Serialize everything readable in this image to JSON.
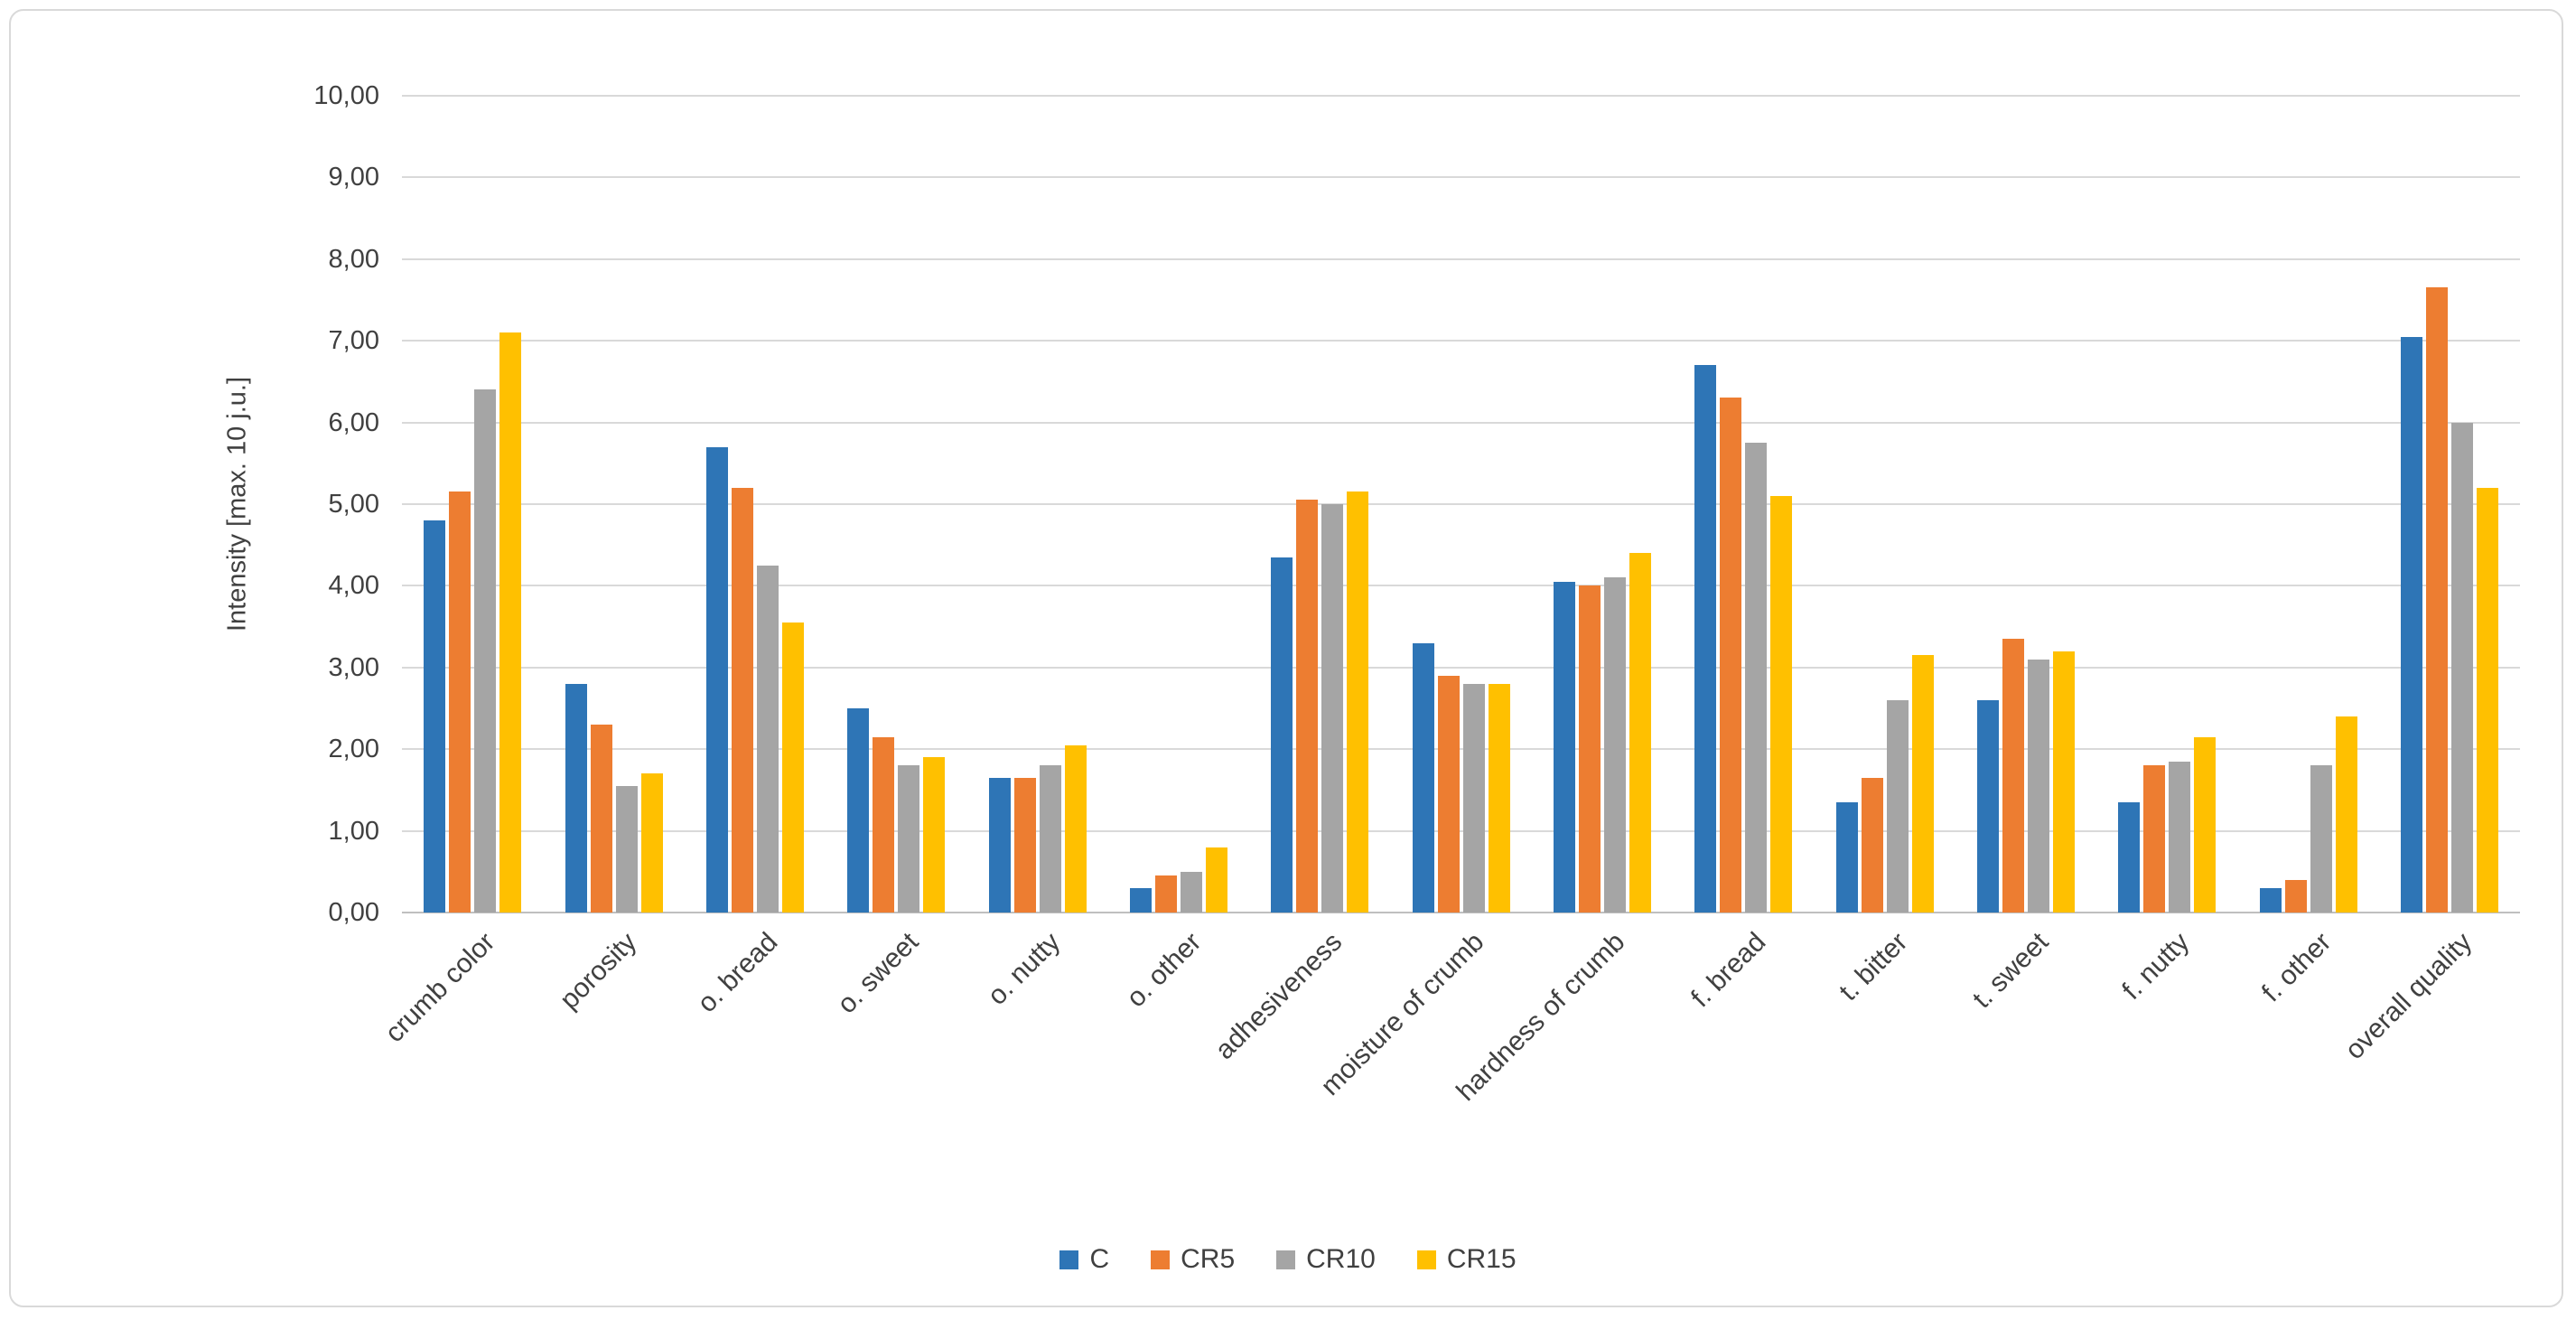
{
  "chart_data": {
    "type": "bar",
    "title": "",
    "xlabel": "",
    "ylabel": "Intensity [max. 10 j.u.]",
    "ylim": [
      0,
      10
    ],
    "ytick_step": 1,
    "ytick_labels": [
      "0,00",
      "1,00",
      "2,00",
      "3,00",
      "4,00",
      "5,00",
      "6,00",
      "7,00",
      "8,00",
      "9,00",
      "10,00"
    ],
    "grid": true,
    "legend_position": "bottom",
    "categories": [
      "crumb color",
      "porosity",
      "o. bread",
      "o. sweet",
      "o. nutty",
      "o. other",
      "adhesiveness",
      "moisture of crumb",
      "hardness of crumb",
      "f. bread",
      "t. bitter",
      "t. sweet",
      "f. nutty",
      "f. other",
      "overall quality"
    ],
    "series": [
      {
        "name": "C",
        "color": "#2E75B6",
        "values": [
          4.8,
          2.8,
          5.7,
          2.5,
          1.65,
          0.3,
          4.35,
          3.3,
          4.05,
          6.7,
          1.35,
          2.6,
          1.35,
          0.3,
          7.05
        ]
      },
      {
        "name": "CR5",
        "color": "#ED7D31",
        "values": [
          5.15,
          2.3,
          5.2,
          2.15,
          1.65,
          0.45,
          5.05,
          2.9,
          4.0,
          6.3,
          1.65,
          3.35,
          1.8,
          0.4,
          7.65
        ]
      },
      {
        "name": "CR10",
        "color": "#A5A5A5",
        "values": [
          6.4,
          1.55,
          4.25,
          1.8,
          1.8,
          0.5,
          5.0,
          2.8,
          4.1,
          5.75,
          2.6,
          3.1,
          1.85,
          1.8,
          6.0
        ]
      },
      {
        "name": "CR15",
        "color": "#FFC000",
        "values": [
          7.1,
          1.7,
          3.55,
          1.9,
          2.05,
          0.8,
          5.15,
          2.8,
          4.4,
          5.1,
          3.15,
          3.2,
          2.15,
          2.4,
          5.2
        ]
      }
    ]
  }
}
